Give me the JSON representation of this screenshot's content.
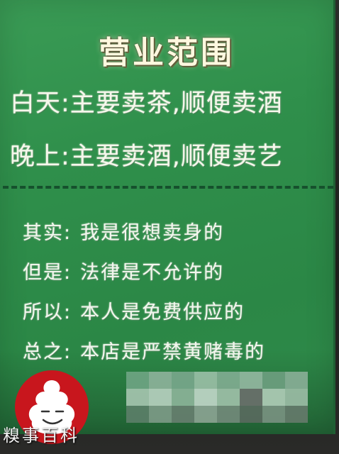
{
  "sign": {
    "title": "营业范围",
    "lines": [
      "白天:主要卖茶,顺便卖酒",
      "晚上:主要卖酒,顺便卖艺"
    ],
    "statements": [
      {
        "label": "其实:",
        "text": "我是很想卖身的"
      },
      {
        "label": "但是:",
        "text": "法律是不允许的"
      },
      {
        "label": "所以:",
        "text": "本人是免费供应的"
      },
      {
        "label": "总之:",
        "text": "本店是严禁黄赌毒的"
      }
    ]
  },
  "watermark": {
    "brand": "糗事百科",
    "logo_icon": "smiling-poop-face-icon",
    "logo_color": "#c8161d"
  },
  "colors": {
    "board": "#2f8f4b",
    "text": "#ffffff",
    "dash": "#16502d"
  }
}
